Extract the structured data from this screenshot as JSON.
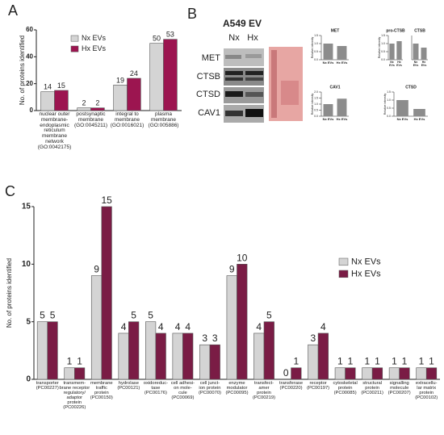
{
  "panels": [
    "A",
    "B",
    "C"
  ],
  "blot": {
    "title": "A549 EV",
    "lanes": [
      "Nx",
      "Hx"
    ],
    "rows": [
      "MET",
      "CTSB",
      "CTSD",
      "CAV1"
    ]
  },
  "chart_data": [
    {
      "type": "bar",
      "y_label": "No. of proteins identified",
      "categories": [
        "nuclear outer\nmembrane-\nendoplasmic\nreticulum\nmembrane\nnetwork\n(GO:0042175)",
        "postsynaptic\nmembrane\n(GO:0045211)",
        "integral to\nmembrane\n(GO:0016021)",
        "plasma\nmembrane\n(GO:005886)"
      ],
      "series": [
        {
          "name": "Nx EVs",
          "color": "#d4d4d4",
          "values": [
            14,
            2,
            19,
            50
          ]
        },
        {
          "name": "Hx EVs",
          "color": "#9c1550",
          "values": [
            15,
            2,
            24,
            53
          ]
        }
      ],
      "ylim": [
        0,
        60
      ],
      "yticks": [
        0,
        20,
        40,
        60
      ],
      "value_labels_shown": true,
      "legend": "top-left"
    },
    {
      "type": "bar",
      "y_label": "No. of proteins identified",
      "categories": [
        "transporter\n(PC00227)",
        "transmem-\nbrane receptor\nregulatory/\nadaptor\nprotein\n(PC00226)",
        "membrane\ntraffic\nprotein\n(PC00150)",
        "hydrolase\n(PC00121)",
        "oxidoreduc-\ntase\n(PC00176)",
        "cell adhesi-\non mole-\ncule\n(PC00069)",
        "cell junct-\nion protein\n(PC00070)",
        "enzyme\nmodulator\n(PC00095)",
        "transfect-\namer\nprotein\n(PC00219)",
        "transferase\n(PC00220)",
        "receptor\n(PC00197)",
        "cytoskeletal\nprotein\n(PC00085)",
        "structural\nprotein\n(PC00211)",
        "signalling\nmolecule\n(PC00207)",
        "extracellu-\nlar matrix\nprotein\n(PC00102)"
      ],
      "series": [
        {
          "name": "Nx EVs",
          "color": "#d4d4d4",
          "values": [
            5,
            1,
            9,
            4,
            5,
            4,
            3,
            9,
            4,
            0,
            3,
            1,
            1,
            1,
            1
          ]
        },
        {
          "name": "Hx EVs",
          "color": "#7a1c45",
          "values": [
            5,
            1,
            15,
            5,
            4,
            4,
            3,
            10,
            5,
            1,
            4,
            1,
            1,
            1,
            1
          ]
        }
      ],
      "ylim": [
        0,
        15
      ],
      "yticks": [
        0,
        5,
        10,
        15
      ],
      "value_labels_shown": true,
      "legend": "right"
    },
    {
      "type": "bar",
      "title": "MET",
      "y_label": "Relative intensity",
      "categories": [
        "Nx EVs",
        "Hx EVs"
      ],
      "series": [
        {
          "name": "MET",
          "color": "#8c8c8c",
          "values": [
            1.0,
            0.85
          ]
        }
      ],
      "ylim": [
        0,
        1.5
      ],
      "yticks": [
        {
          "value": 0,
          "label": "0.0"
        },
        {
          "value": 0.5,
          "label": "0.5"
        },
        {
          "value": 1,
          "label": "1.0"
        },
        {
          "value": 1.5,
          "label": "1.5"
        }
      ]
    },
    {
      "type": "bar",
      "title": "pro-CTSB",
      "y_label": "Relative intensity",
      "categories": [
        "Nx EVs",
        "Hx EVs"
      ],
      "series": [
        {
          "name": "pro-CTSB",
          "color": "#8c8c8c",
          "values": [
            1.0,
            1.15
          ]
        }
      ],
      "ylim": [
        0,
        1.5
      ],
      "yticks": [
        {
          "value": 0,
          "label": "0.0"
        },
        {
          "value": 0.5,
          "label": "0.5"
        },
        {
          "value": 1,
          "label": "1.0"
        },
        {
          "value": 1.5,
          "label": "1.5"
        }
      ]
    },
    {
      "type": "bar",
      "title": "CTSB",
      "categories": [
        "Nx EVs",
        "Hx EVs"
      ],
      "series": [
        {
          "name": "CTSB",
          "color": "#8c8c8c",
          "values": [
            1.0,
            0.75
          ]
        }
      ],
      "ylim": [
        0,
        1.5
      ],
      "yticks": []
    },
    {
      "type": "bar",
      "title": "CAV1",
      "y_label": "Relative intensity",
      "categories": [
        "Nx EVs",
        "Hx EVs"
      ],
      "series": [
        {
          "name": "CAV1",
          "color": "#8c8c8c",
          "values": [
            1.0,
            1.45
          ]
        }
      ],
      "ylim": [
        0,
        2
      ],
      "yticks": [
        {
          "value": 0,
          "label": "0.0"
        },
        {
          "value": 0.5,
          "label": "0.5"
        },
        {
          "value": 1,
          "label": "1.0"
        },
        {
          "value": 1.5,
          "label": "1.5"
        },
        {
          "value": 2,
          "label": "2.0"
        }
      ]
    },
    {
      "type": "bar",
      "title": "CTSD",
      "y_label": "Relative intensity",
      "categories": [
        "Nx EVs",
        "Hx EVs"
      ],
      "series": [
        {
          "name": "CTSD",
          "color": "#8c8c8c",
          "values": [
            1.0,
            0.45
          ]
        }
      ],
      "ylim": [
        0,
        1.5
      ],
      "yticks": [
        {
          "value": 0,
          "label": "0.0"
        },
        {
          "value": 0.5,
          "label": "0.5"
        },
        {
          "value": 1,
          "label": "1.0"
        },
        {
          "value": 1.5,
          "label": "1.5"
        }
      ]
    }
  ]
}
